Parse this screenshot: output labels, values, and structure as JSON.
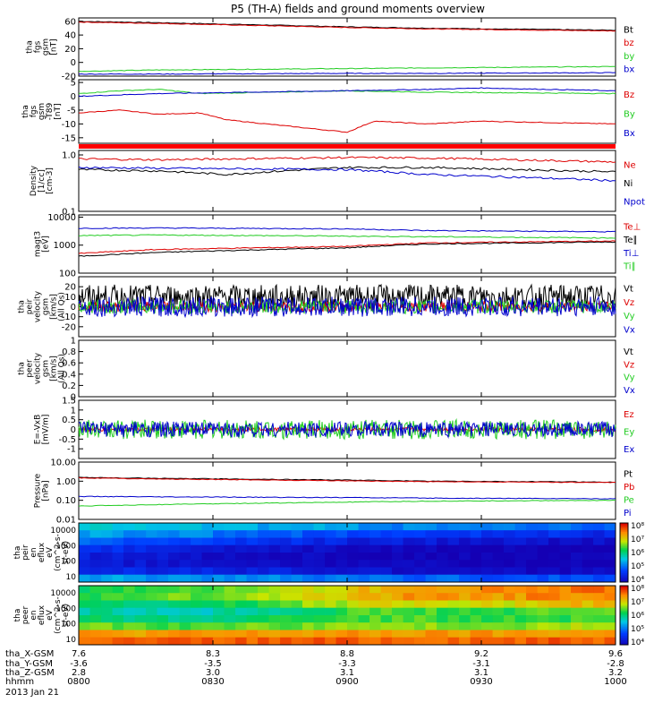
{
  "title": "P5 (TH-A) fields and ground moments overview",
  "date_label": "2013 Jan 21",
  "footer": {
    "row_labels": [
      "tha_X-GSM",
      "tha_Y-GSM",
      "tha_Z-GSM",
      "hhmm"
    ],
    "columns": [
      {
        "x": "7.6",
        "y": "-3.6",
        "z": "2.8",
        "time": "0800"
      },
      {
        "x": "8.3",
        "y": "-3.5",
        "z": "3.0",
        "time": "0830"
      },
      {
        "x": "8.8",
        "y": "-3.3",
        "z": "3.1",
        "time": "0900"
      },
      {
        "x": "9.2",
        "y": "-3.1",
        "z": "3.1",
        "time": "0930"
      },
      {
        "x": "9.6",
        "y": "-2.8",
        "z": "3.2",
        "time": "1000"
      }
    ]
  },
  "colors": {
    "black": "#000000",
    "red": "#dd0000",
    "green": "#22cc22",
    "blue": "#0000cc"
  },
  "chart_data": [
    {
      "id": "fgs_gsm",
      "type": "line",
      "ylabel": [
        "tha",
        "fgs",
        "gsm",
        "[nT]"
      ],
      "ylim": [
        -20,
        65
      ],
      "yticks": [
        -20,
        0,
        20,
        40,
        60
      ],
      "xlim": [
        800,
        1000
      ],
      "series": [
        {
          "name": "Bt",
          "color": "#000000",
          "x": [
            800,
            830,
            900,
            930,
            1000
          ],
          "y": [
            60,
            58,
            52,
            50,
            47
          ]
        },
        {
          "name": "bz",
          "color": "#dd0000",
          "x": [
            800,
            830,
            900,
            930,
            1000
          ],
          "y": [
            59,
            57,
            51,
            49,
            46
          ]
        },
        {
          "name": "by",
          "color": "#22cc22",
          "x": [
            800,
            830,
            900,
            930,
            1000
          ],
          "y": [
            -13,
            -11,
            -9,
            -8,
            -6
          ]
        },
        {
          "name": "bx",
          "color": "#0000cc",
          "x": [
            800,
            830,
            900,
            930,
            1000
          ],
          "y": [
            -17,
            -17,
            -16,
            -16,
            -15
          ]
        }
      ]
    },
    {
      "id": "fgs_gsm_tdp",
      "type": "line",
      "ylabel": [
        "tha",
        "fgs",
        "gsm",
        "-T89",
        "[nT]"
      ],
      "ylim": [
        -17,
        6
      ],
      "yticks": [
        -15,
        -10,
        -5,
        0,
        5
      ],
      "xlim": [
        800,
        1000
      ],
      "series": [
        {
          "name": "Bz",
          "color": "#dd0000",
          "x": [
            800,
            815,
            830,
            845,
            855,
            900,
            910,
            930,
            950,
            1000
          ],
          "y": [
            -6,
            -5,
            -6.5,
            -6,
            -8.5,
            -13,
            -9,
            -10,
            -9,
            -10
          ]
        },
        {
          "name": "By",
          "color": "#22cc22",
          "x": [
            800,
            815,
            830,
            845,
            900,
            930,
            1000
          ],
          "y": [
            1,
            2,
            2.5,
            1,
            2,
            1.5,
            1
          ]
        },
        {
          "name": "Bx",
          "color": "#0000cc",
          "x": [
            800,
            830,
            900,
            930,
            950,
            1000
          ],
          "y": [
            0,
            1,
            2,
            2.5,
            3,
            2
          ]
        }
      ]
    },
    {
      "id": "density",
      "type": "line",
      "log": true,
      "ylabel": [
        "Density",
        "[1/cc]",
        "[cm-3]"
      ],
      "ylim": [
        0.1,
        1.2
      ],
      "ytick_labels": [
        {
          "v": 1.0,
          "t": "1.0"
        },
        {
          "v": 0.1,
          "t": "0.1"
        }
      ],
      "xlim": [
        800,
        1000
      ],
      "series": [
        {
          "name": "Ne",
          "color": "#dd0000",
          "x": [
            800,
            830,
            900,
            930,
            1000
          ],
          "y": [
            0.85,
            0.82,
            0.9,
            0.88,
            0.75
          ]
        },
        {
          "name": "Ni",
          "color": "#000000",
          "x": [
            800,
            830,
            855,
            900,
            930,
            1000
          ],
          "y": [
            0.55,
            0.52,
            0.45,
            0.6,
            0.6,
            0.5
          ]
        },
        {
          "name": "Npot",
          "color": "#0000cc",
          "x": [
            800,
            830,
            900,
            930,
            1000
          ],
          "y": [
            0.6,
            0.58,
            0.55,
            0.45,
            0.35
          ]
        }
      ]
    },
    {
      "id": "temperature",
      "type": "line",
      "log": true,
      "ylabel": [
        "magt3",
        "[eV]"
      ],
      "ylim": [
        100,
        12000
      ],
      "ytick_labels": [
        {
          "v": 10000,
          "t": "10000"
        },
        {
          "v": 1000,
          "t": "1000"
        },
        {
          "v": 100,
          "t": "100"
        }
      ],
      "xlim": [
        800,
        1000
      ],
      "series": [
        {
          "name": "Te⊥",
          "color": "#dd0000",
          "x": [
            800,
            830,
            900,
            930,
            1000
          ],
          "y": [
            500,
            700,
            900,
            1200,
            1400
          ]
        },
        {
          "name": "Te∥",
          "color": "#000000",
          "x": [
            800,
            830,
            900,
            930,
            1000
          ],
          "y": [
            400,
            550,
            800,
            1100,
            1300
          ]
        },
        {
          "name": "Ti⊥",
          "color": "#0000cc",
          "x": [
            800,
            830,
            900,
            930,
            1000
          ],
          "y": [
            4000,
            4100,
            3800,
            3300,
            3000
          ]
        },
        {
          "name": "Ti∥",
          "color": "#22cc22",
          "x": [
            800,
            830,
            900,
            930,
            1000
          ],
          "y": [
            2200,
            2300,
            2100,
            2000,
            1800
          ]
        }
      ]
    },
    {
      "id": "peir_velocity",
      "type": "line",
      "noisy": true,
      "ylabel": [
        "tha",
        "peir",
        "velocity",
        "gsm",
        "[km/s]",
        "(All Qs)"
      ],
      "ylim": [
        -30,
        30
      ],
      "yticks": [
        -20,
        -10,
        0,
        10,
        20
      ],
      "xlim": [
        800,
        1000
      ],
      "series": [
        {
          "name": "Vt",
          "color": "#000000",
          "center": 10,
          "amp": 12
        },
        {
          "name": "Vz",
          "color": "#dd0000",
          "center": 0,
          "amp": 5
        },
        {
          "name": "Vy",
          "color": "#22cc22",
          "center": 0,
          "amp": 7
        },
        {
          "name": "Vx",
          "color": "#0000cc",
          "center": 0,
          "amp": 10
        }
      ]
    },
    {
      "id": "peer_velocity",
      "type": "line",
      "ylabel": [
        "tha",
        "peer",
        "velocity",
        "gsm",
        "[km/s]",
        "(All Qs)"
      ],
      "ylim": [
        0,
        1.0
      ],
      "yticks": [
        0.0,
        0.2,
        0.4,
        0.6,
        0.8,
        1.0
      ],
      "xlim": [
        800,
        1000
      ],
      "series": [
        {
          "name": "Vt",
          "color": "#000000"
        },
        {
          "name": "Vz",
          "color": "#dd0000"
        },
        {
          "name": "Vy",
          "color": "#22cc22"
        },
        {
          "name": "Vx",
          "color": "#0000cc"
        }
      ]
    },
    {
      "id": "efield",
      "type": "line",
      "noisy": true,
      "ylabel": [
        "E=-VxB",
        "[mV/m]"
      ],
      "ylim": [
        -1.5,
        1.5
      ],
      "yticks": [
        -1.0,
        -0.5,
        0.0,
        0.5,
        1.0,
        1.5
      ],
      "xlim": [
        800,
        1000
      ],
      "series": [
        {
          "name": "Ez",
          "color": "#dd0000",
          "center": 0,
          "amp": 0.1
        },
        {
          "name": "Ey",
          "color": "#22cc22",
          "center": 0,
          "amp": 0.5
        },
        {
          "name": "Ex",
          "color": "#0000cc",
          "center": 0,
          "amp": 0.4
        }
      ]
    },
    {
      "id": "pressure",
      "type": "line",
      "log": true,
      "ylabel": [
        "Pressure",
        "[nPa]"
      ],
      "ylim": [
        0.01,
        10
      ],
      "ytick_labels": [
        {
          "v": 10,
          "t": "10.00"
        },
        {
          "v": 1,
          "t": "1.00"
        },
        {
          "v": 0.1,
          "t": "0.10"
        },
        {
          "v": 0.01,
          "t": "0.01"
        }
      ],
      "xlim": [
        800,
        1000
      ],
      "series": [
        {
          "name": "Pt",
          "color": "#000000",
          "x": [
            800,
            830,
            900,
            930,
            1000
          ],
          "y": [
            1.6,
            1.4,
            1.15,
            1.0,
            0.9
          ]
        },
        {
          "name": "Pb",
          "color": "#dd0000",
          "x": [
            800,
            830,
            900,
            930,
            1000
          ],
          "y": [
            1.5,
            1.3,
            1.05,
            0.95,
            0.85
          ]
        },
        {
          "name": "Pe",
          "color": "#22cc22",
          "x": [
            800,
            830,
            900,
            930,
            1000
          ],
          "y": [
            0.05,
            0.06,
            0.08,
            0.09,
            0.1
          ]
        },
        {
          "name": "Pi",
          "color": "#0000cc",
          "x": [
            800,
            830,
            900,
            930,
            1000
          ],
          "y": [
            0.16,
            0.15,
            0.14,
            0.13,
            0.12
          ]
        }
      ]
    },
    {
      "id": "peir_eflux",
      "type": "heatmap",
      "ylabel": [
        "tha",
        "peir",
        "en",
        "eflux",
        "eV",
        "(cm^2-s-",
        "sr-eV)"
      ],
      "ytick_labels": [
        "10000",
        "1000",
        "100",
        "10"
      ],
      "colorbar_labels": [
        "10⁸",
        "10⁷",
        "10⁶",
        "10⁵",
        "10⁴"
      ],
      "rows": [
        [
          5.6,
          5.6,
          5.5,
          5.5,
          5.4,
          5.4,
          5.3,
          5.2,
          5.2,
          5.1,
          5.1,
          5.0
        ],
        [
          5.4,
          5.3,
          5.2,
          5.1,
          5.0,
          4.9,
          4.8,
          4.8,
          4.7,
          4.6,
          4.6,
          4.5
        ],
        [
          5.0,
          4.9,
          4.8,
          4.7,
          4.6,
          4.5,
          4.4,
          4.4,
          4.3,
          4.3,
          4.2,
          4.2
        ],
        [
          4.6,
          4.5,
          4.4,
          4.3,
          4.2,
          4.2,
          4.1,
          4.1,
          4.0,
          4.0,
          4.0,
          4.0
        ],
        [
          4.4,
          4.3,
          4.2,
          4.2,
          4.1,
          4.1,
          4.0,
          4.0,
          4.0,
          4.0,
          4.0,
          4.0
        ],
        [
          4.4,
          4.3,
          4.3,
          4.2,
          4.2,
          4.1,
          4.1,
          4.1,
          4.0,
          4.0,
          4.0,
          4.0
        ],
        [
          4.6,
          4.5,
          4.5,
          4.4,
          4.4,
          4.3,
          4.3,
          4.2,
          4.2,
          4.2,
          4.1,
          4.1
        ],
        [
          5.4,
          5.3,
          5.3,
          5.2,
          5.2,
          5.1,
          5.1,
          5.0,
          5.0,
          4.9,
          4.9,
          4.9
        ]
      ]
    },
    {
      "id": "peer_eflux",
      "type": "heatmap",
      "ylabel": [
        "tha",
        "peer",
        "en",
        "eflux",
        "eV",
        "(cm^2-s-",
        "sr-eV)"
      ],
      "ytick_labels": [
        "10000",
        "1000",
        "100",
        "10"
      ],
      "colorbar_labels": [
        "10⁸",
        "10⁷",
        "10⁶",
        "10⁵",
        "10⁴"
      ],
      "rows": [
        [
          6.2,
          6.3,
          6.4,
          6.5,
          6.7,
          6.9,
          7.1,
          7.3,
          7.3,
          7.4,
          7.4,
          7.5
        ],
        [
          6.3,
          6.4,
          6.5,
          6.6,
          6.8,
          7.0,
          7.2,
          7.3,
          7.3,
          7.3,
          7.4,
          7.4
        ],
        [
          6.1,
          6.0,
          6.1,
          6.2,
          6.4,
          6.7,
          6.9,
          6.9,
          6.8,
          6.9,
          7.0,
          7.1
        ],
        [
          5.9,
          5.8,
          5.8,
          5.9,
          6.0,
          6.2,
          6.4,
          6.4,
          6.3,
          6.3,
          6.4,
          6.5
        ],
        [
          6.1,
          6.0,
          6.0,
          6.1,
          6.2,
          6.3,
          6.4,
          6.4,
          6.3,
          6.3,
          6.3,
          6.4
        ],
        [
          6.5,
          6.4,
          6.4,
          6.5,
          6.5,
          6.6,
          6.6,
          6.6,
          6.6,
          6.6,
          6.7,
          6.7
        ],
        [
          7.3,
          7.3,
          7.3,
          7.3,
          7.3,
          7.3,
          7.3,
          7.3,
          7.3,
          7.3,
          7.3,
          7.3
        ],
        [
          7.6,
          7.6,
          7.6,
          7.6,
          7.6,
          7.6,
          7.6,
          7.6,
          7.6,
          7.6,
          7.6,
          7.6
        ]
      ]
    }
  ]
}
